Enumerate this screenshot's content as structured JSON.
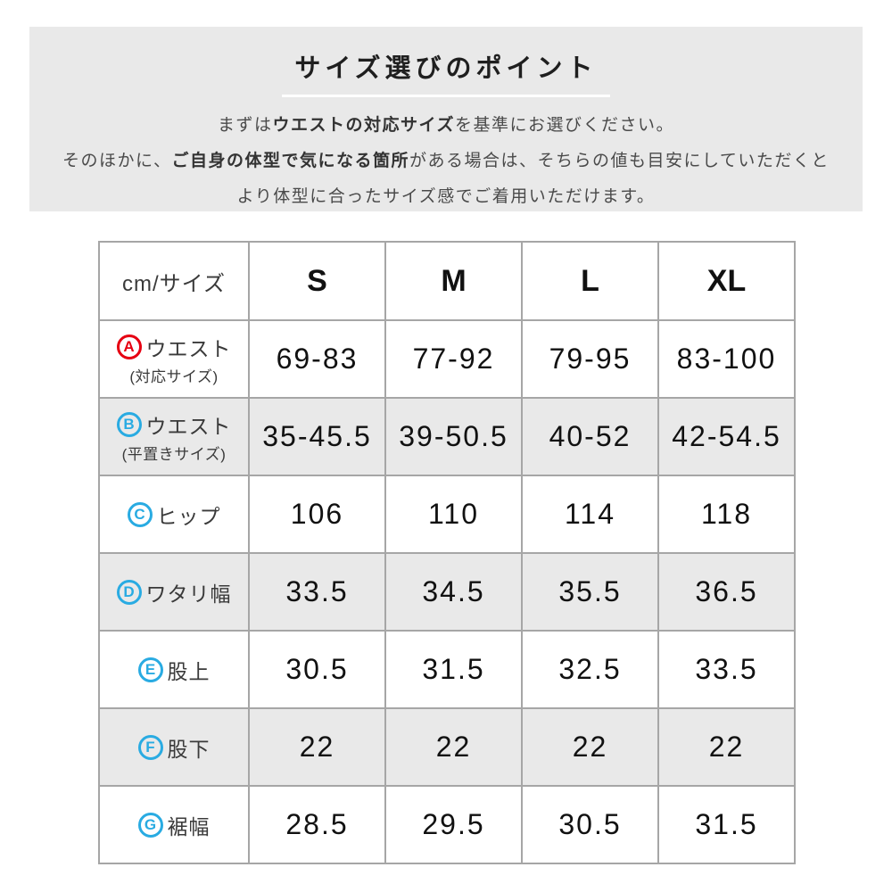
{
  "intro": {
    "title": "サイズ選びのポイント",
    "line1": {
      "pre": "まずは",
      "bold": "ウエストの対応サイズ",
      "post": "を基準にお選びください。"
    },
    "line2": {
      "pre": "そのほかに、",
      "bold": "ご自身の体型で気になる箇所",
      "post": "がある場合は、そちらの値も目安にしていただくと"
    },
    "line3": "より体型に合ったサイズ感でご着用いただけます。",
    "bg_color": "#e9e9e9"
  },
  "size_table": {
    "unit_header": "cm/サイズ",
    "columns": [
      "S",
      "M",
      "L",
      "XL"
    ],
    "marker_colors": {
      "red": "#e60012",
      "blue": "#29abe2"
    },
    "stripe_color": "#e9e9e9",
    "rows": [
      {
        "marker": "A",
        "marker_color": "red",
        "label": "ウエスト",
        "sublabel": "(対応サイズ)",
        "values": [
          "69-83",
          "77-92",
          "79-95",
          "83-100"
        ]
      },
      {
        "marker": "B",
        "marker_color": "blue",
        "label": "ウエスト",
        "sublabel": "(平置きサイズ)",
        "values": [
          "35-45.5",
          "39-50.5",
          "40-52",
          "42-54.5"
        ]
      },
      {
        "marker": "C",
        "marker_color": "blue",
        "label": "ヒップ",
        "values": [
          "106",
          "110",
          "114",
          "118"
        ]
      },
      {
        "marker": "D",
        "marker_color": "blue",
        "label": "ワタリ幅",
        "values": [
          "33.5",
          "34.5",
          "35.5",
          "36.5"
        ]
      },
      {
        "marker": "E",
        "marker_color": "blue",
        "label": "股上",
        "values": [
          "30.5",
          "31.5",
          "32.5",
          "33.5"
        ]
      },
      {
        "marker": "F",
        "marker_color": "blue",
        "label": "股下",
        "values": [
          "22",
          "22",
          "22",
          "22"
        ]
      },
      {
        "marker": "G",
        "marker_color": "blue",
        "label": "裾幅",
        "values": [
          "28.5",
          "29.5",
          "30.5",
          "31.5"
        ]
      }
    ]
  }
}
